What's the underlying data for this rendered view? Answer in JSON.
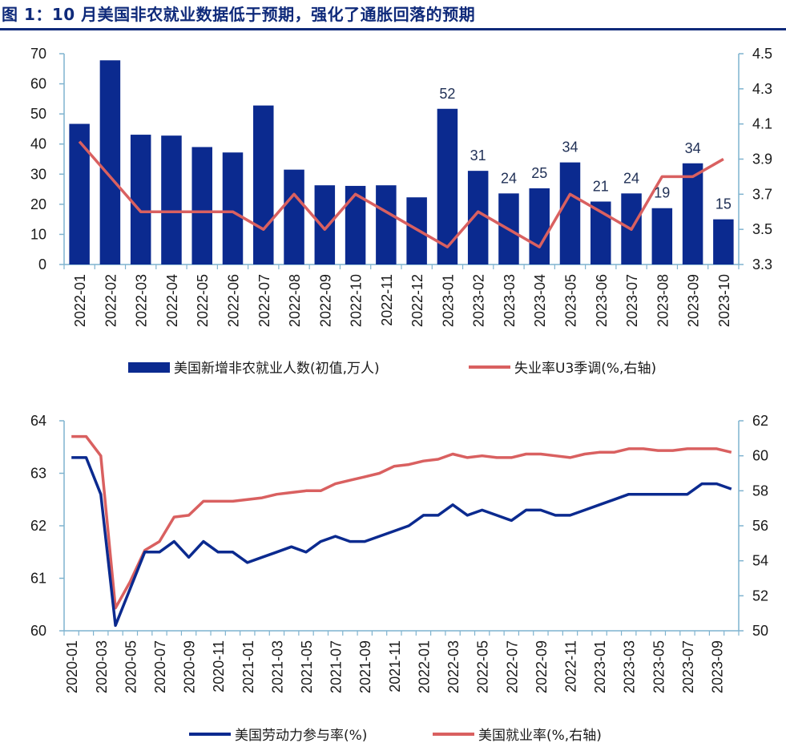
{
  "title": "图 1：10 月美国非农就业数据低于预期，强化了通胀回落的预期",
  "colors": {
    "title": "#0f2a7a",
    "bar": "#0b2a8f",
    "line_red": "#d96060",
    "line_blue": "#0b2a8f",
    "axis": "#7fb3cf"
  },
  "chart_data": [
    {
      "type": "bar",
      "categories": [
        "2022-01",
        "2022-02",
        "2022-03",
        "2022-04",
        "2022-05",
        "2022-06",
        "2022-07",
        "2022-08",
        "2022-09",
        "2022-10",
        "2022-11",
        "2022-12",
        "2023-01",
        "2023-02",
        "2023-03",
        "2023-04",
        "2023-05",
        "2023-06",
        "2023-07",
        "2023-08",
        "2023-09",
        "2023-10"
      ],
      "series": [
        {
          "name": "美国新增非农就业人数(初值,万人)",
          "type": "bar",
          "axis": "left",
          "values": [
            46.7,
            67.8,
            43.1,
            42.8,
            39,
            37.2,
            52.8,
            31.5,
            26.3,
            26.1,
            26.3,
            22.3,
            51.7,
            31.1,
            23.6,
            25.3,
            33.9,
            20.9,
            23.6,
            18.7,
            33.6,
            15
          ]
        },
        {
          "name": "失业率U3季调(%,右轴)",
          "type": "line",
          "axis": "right",
          "values": [
            4.0,
            3.8,
            3.6,
            3.6,
            3.6,
            3.6,
            3.5,
            3.7,
            3.5,
            3.7,
            3.6,
            3.5,
            3.4,
            3.6,
            3.5,
            3.4,
            3.7,
            3.6,
            3.5,
            3.8,
            3.8,
            3.9
          ]
        }
      ],
      "data_labels": [
        {
          "category": "2023-01",
          "text": "52"
        },
        {
          "category": "2023-02",
          "text": "31"
        },
        {
          "category": "2023-03",
          "text": "24"
        },
        {
          "category": "2023-04",
          "text": "25"
        },
        {
          "category": "2023-05",
          "text": "34"
        },
        {
          "category": "2023-06",
          "text": "21"
        },
        {
          "category": "2023-07",
          "text": "24"
        },
        {
          "category": "2023-08",
          "text": "19"
        },
        {
          "category": "2023-09",
          "text": "34"
        },
        {
          "category": "2023-10",
          "text": "15"
        }
      ],
      "ylim_left": [
        0,
        70
      ],
      "yticks_left": [
        0,
        10,
        20,
        30,
        40,
        50,
        60,
        70
      ],
      "ylim_right": [
        3.3,
        4.5
      ],
      "yticks_right": [
        "3.3",
        "3.5",
        "3.7",
        "3.9",
        "4.1",
        "4.3",
        "4.5"
      ],
      "legend_placement": "bottom"
    },
    {
      "type": "line",
      "x": [
        "2020-01",
        "2020-02",
        "2020-03",
        "2020-04",
        "2020-05",
        "2020-06",
        "2020-07",
        "2020-08",
        "2020-09",
        "2020-10",
        "2020-11",
        "2020-12",
        "2021-01",
        "2021-02",
        "2021-03",
        "2021-04",
        "2021-05",
        "2021-06",
        "2021-07",
        "2021-08",
        "2021-09",
        "2021-10",
        "2021-11",
        "2021-12",
        "2022-01",
        "2022-02",
        "2022-03",
        "2022-04",
        "2022-05",
        "2022-06",
        "2022-07",
        "2022-08",
        "2022-09",
        "2022-10",
        "2022-11",
        "2022-12",
        "2023-01",
        "2023-02",
        "2023-03",
        "2023-04",
        "2023-05",
        "2023-06",
        "2023-07",
        "2023-08",
        "2023-09",
        "2023-10"
      ],
      "xticks": [
        "2020-01",
        "2020-03",
        "2020-05",
        "2020-07",
        "2020-09",
        "2020-11",
        "2021-01",
        "2021-03",
        "2021-05",
        "2021-07",
        "2021-09",
        "2021-11",
        "2022-01",
        "2022-03",
        "2022-05",
        "2022-07",
        "2022-09",
        "2022-11",
        "2023-01",
        "2023-03",
        "2023-05",
        "2023-07",
        "2023-09"
      ],
      "series": [
        {
          "name": "美国劳动力参与率(%)",
          "axis": "left",
          "values": [
            63.3,
            63.3,
            62.6,
            60.1,
            60.8,
            61.5,
            61.5,
            61.7,
            61.4,
            61.7,
            61.5,
            61.5,
            61.3,
            61.4,
            61.5,
            61.6,
            61.5,
            61.7,
            61.8,
            61.7,
            61.7,
            61.8,
            61.9,
            62.0,
            62.2,
            62.2,
            62.4,
            62.2,
            62.3,
            62.2,
            62.1,
            62.3,
            62.3,
            62.2,
            62.2,
            62.3,
            62.4,
            62.5,
            62.6,
            62.6,
            62.6,
            62.6,
            62.6,
            62.8,
            62.8,
            62.7
          ]
        },
        {
          "name": "美国就业率(%,右轴)",
          "axis": "right",
          "values": [
            61.1,
            61.1,
            60.0,
            51.3,
            52.8,
            54.6,
            55.1,
            56.5,
            56.6,
            57.4,
            57.4,
            57.4,
            57.5,
            57.6,
            57.8,
            57.9,
            58.0,
            58.0,
            58.4,
            58.6,
            58.8,
            59.0,
            59.4,
            59.5,
            59.7,
            59.8,
            60.1,
            59.9,
            60.0,
            59.9,
            59.9,
            60.1,
            60.1,
            60.0,
            59.9,
            60.1,
            60.2,
            60.2,
            60.4,
            60.4,
            60.3,
            60.3,
            60.4,
            60.4,
            60.4,
            60.2
          ]
        }
      ],
      "ylim_left": [
        60,
        64
      ],
      "yticks_left": [
        60,
        61,
        62,
        63,
        64
      ],
      "ylim_right": [
        50,
        62
      ],
      "yticks_right": [
        50,
        52,
        54,
        56,
        58,
        60,
        62
      ],
      "legend_placement": "bottom"
    }
  ]
}
